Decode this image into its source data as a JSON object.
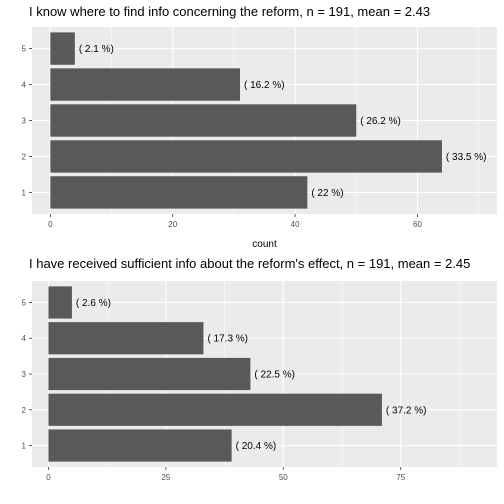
{
  "chart_data": [
    {
      "type": "bar",
      "orientation": "horizontal",
      "title": "I know where to find info concerning the reform, n = 191, mean = 2.43",
      "categories": [
        "1",
        "2",
        "3",
        "4",
        "5"
      ],
      "values": [
        42,
        64,
        50,
        31,
        4
      ],
      "labels": [
        "( 22 %)",
        "( 33.5 %)",
        "( 26.2 %)",
        "( 16.2 %)",
        "( 2.1 %)"
      ],
      "xlabel": "count",
      "ylabel": "",
      "xlim": [
        -3,
        73
      ],
      "xticks": [
        0,
        20,
        40,
        60
      ],
      "grid": true,
      "bar_color": "#595959",
      "panel_color": "#ebebeb"
    },
    {
      "type": "bar",
      "orientation": "horizontal",
      "title": "I have received sufficient info about the reform's effect, n = 191, mean =  2.45",
      "categories": [
        "1",
        "2",
        "3",
        "4",
        "5"
      ],
      "values": [
        39,
        71,
        43,
        33,
        5
      ],
      "labels": [
        "( 20.4 %)",
        "( 37.2 %)",
        "( 22.5 %)",
        "( 17.3 %)",
        "( 2.6 %)"
      ],
      "xlabel": "",
      "ylabel": "",
      "xlim": [
        -3.5,
        95.5
      ],
      "xticks": [
        0,
        25,
        50,
        75
      ],
      "grid": true,
      "bar_color": "#595959",
      "panel_color": "#ebebeb"
    }
  ]
}
